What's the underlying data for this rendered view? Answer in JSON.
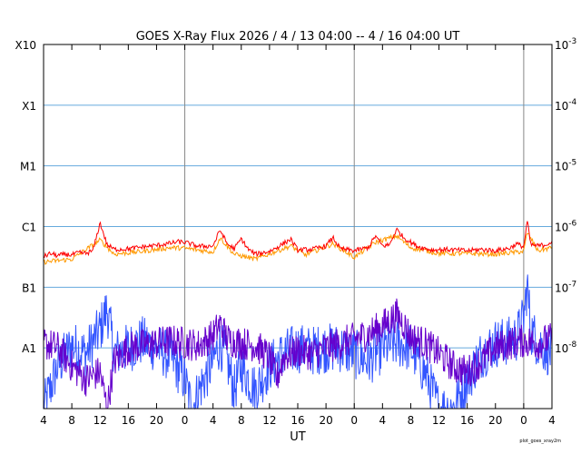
{
  "chart_data": {
    "type": "line",
    "title": "GOES X-Ray Flux   2026  /  4  /  13    04:00 --  4  /  16    04:00    UT",
    "xlabel": "UT",
    "x_tick_labels": [
      "4",
      "8",
      "12",
      "16",
      "20",
      "0",
      "4",
      "8",
      "12",
      "16",
      "20",
      "0",
      "4",
      "8",
      "12",
      "16",
      "20",
      "0",
      "4"
    ],
    "x_range_hours": [
      0,
      72
    ],
    "day_boundaries_hours": [
      20,
      44,
      68
    ],
    "y_scale": "log",
    "y_range_wm2": [
      1e-09,
      0.001
    ],
    "flare_class_labels": [
      "X10",
      "X1",
      "M1",
      "C1",
      "B1",
      "A1"
    ],
    "right_tick_labels": [
      {
        "base": "10",
        "exp": "-3"
      },
      {
        "base": "10",
        "exp": "-4"
      },
      {
        "base": "10",
        "exp": "-5"
      },
      {
        "base": "10",
        "exp": "-6"
      },
      {
        "base": "10",
        "exp": "-7"
      },
      {
        "base": "10",
        "exp": "-8"
      }
    ],
    "grid": "horizontal lines at class boundaries; vertical lines at 00 UT",
    "series": [
      {
        "color": "#ff0000",
        "key_points": [
          [
            0,
            3.2e-07
          ],
          [
            1,
            3.6e-07
          ],
          [
            2,
            3.3e-07
          ],
          [
            3,
            3.5e-07
          ],
          [
            4,
            3.4e-07
          ],
          [
            5,
            3.7e-07
          ],
          [
            6,
            3.6e-07
          ],
          [
            7,
            4e-07
          ],
          [
            8,
            1.15e-06
          ],
          [
            9,
            5e-07
          ],
          [
            10,
            4.2e-07
          ],
          [
            12,
            4.3e-07
          ],
          [
            14,
            4.6e-07
          ],
          [
            16,
            4.9e-07
          ],
          [
            18,
            5.3e-07
          ],
          [
            19,
            5.6e-07
          ],
          [
            20,
            5.5e-07
          ],
          [
            22,
            4.7e-07
          ],
          [
            24,
            4.8e-07
          ],
          [
            25,
            8.8e-07
          ],
          [
            26,
            5.2e-07
          ],
          [
            27,
            4.3e-07
          ],
          [
            28,
            6.3e-07
          ],
          [
            29,
            4.2e-07
          ],
          [
            30,
            3.5e-07
          ],
          [
            32,
            3.9e-07
          ],
          [
            33,
            4.5e-07
          ],
          [
            35,
            6.2e-07
          ],
          [
            36,
            4.1e-07
          ],
          [
            38,
            4.2e-07
          ],
          [
            40,
            4.8e-07
          ],
          [
            41,
            6.6e-07
          ],
          [
            42,
            4.3e-07
          ],
          [
            44,
            4e-07
          ],
          [
            46,
            4.5e-07
          ],
          [
            47,
            7e-07
          ],
          [
            48,
            4.8e-07
          ],
          [
            49,
            5e-07
          ],
          [
            50,
            9e-07
          ],
          [
            51,
            6.6e-07
          ],
          [
            52,
            5.5e-07
          ],
          [
            53,
            4.7e-07
          ],
          [
            55,
            4.1e-07
          ],
          [
            57,
            4.2e-07
          ],
          [
            60,
            4e-07
          ],
          [
            62,
            4.2e-07
          ],
          [
            64,
            4e-07
          ],
          [
            66,
            4.4e-07
          ],
          [
            67,
            5.2e-07
          ],
          [
            68,
            4.6e-07
          ],
          [
            68.5,
            1.25e-06
          ],
          [
            69,
            5e-07
          ],
          [
            70,
            4.8e-07
          ],
          [
            71,
            5e-07
          ],
          [
            72,
            5.6e-07
          ]
        ]
      },
      {
        "color": "#ff9900",
        "key_points": [
          [
            0,
            2.6e-07
          ],
          [
            4,
            2.9e-07
          ],
          [
            8,
            6e-07
          ],
          [
            10,
            3.5e-07
          ],
          [
            14,
            3.9e-07
          ],
          [
            18,
            4.5e-07
          ],
          [
            20,
            4.4e-07
          ],
          [
            24,
            3.8e-07
          ],
          [
            25,
            6.5e-07
          ],
          [
            27,
            3.5e-07
          ],
          [
            30,
            2.9e-07
          ],
          [
            35,
            4.8e-07
          ],
          [
            37,
            3.4e-07
          ],
          [
            41,
            5.2e-07
          ],
          [
            44,
            3.1e-07
          ],
          [
            47,
            5.5e-07
          ],
          [
            50,
            7e-07
          ],
          [
            52,
            4.5e-07
          ],
          [
            56,
            3.6e-07
          ],
          [
            60,
            3.6e-07
          ],
          [
            64,
            3.5e-07
          ],
          [
            68,
            3.9e-07
          ],
          [
            68.5,
            8e-07
          ],
          [
            70,
            4e-07
          ],
          [
            72,
            4.5e-07
          ]
        ]
      },
      {
        "color": "#6600cc",
        "key_points": [
          [
            0,
            1.2e-08
          ],
          [
            2,
            1e-08
          ],
          [
            4,
            5e-09
          ],
          [
            6,
            3e-09
          ],
          [
            8,
            4e-09
          ],
          [
            9,
            1e-09
          ],
          [
            10,
            6e-09
          ],
          [
            12,
            1e-08
          ],
          [
            14,
            1.1e-08
          ],
          [
            16,
            1.2e-08
          ],
          [
            18,
            1.3e-08
          ],
          [
            20,
            1.2e-08
          ],
          [
            22,
            1.1e-08
          ],
          [
            24,
            1.6e-08
          ],
          [
            25,
            2.5e-08
          ],
          [
            26,
            1.4e-08
          ],
          [
            28,
            1.2e-08
          ],
          [
            30,
            1.1e-08
          ],
          [
            32,
            7e-09
          ],
          [
            33,
            3e-09
          ],
          [
            34,
            7e-09
          ],
          [
            36,
            9e-09
          ],
          [
            38,
            8e-09
          ],
          [
            40,
            1e-08
          ],
          [
            42,
            1.2e-08
          ],
          [
            44,
            1.4e-08
          ],
          [
            46,
            1.7e-08
          ],
          [
            48,
            2.3e-08
          ],
          [
            50,
            3.5e-08
          ],
          [
            51,
            2.5e-08
          ],
          [
            52,
            1.5e-08
          ],
          [
            54,
            1.2e-08
          ],
          [
            56,
            8e-09
          ],
          [
            58,
            5e-09
          ],
          [
            60,
            4e-09
          ],
          [
            62,
            6e-09
          ],
          [
            64,
            1e-08
          ],
          [
            66,
            1.2e-08
          ],
          [
            68,
            1.3e-08
          ],
          [
            70,
            1.2e-08
          ],
          [
            72,
            1.4e-08
          ]
        ]
      },
      {
        "color": "#3355ff",
        "key_points": [
          [
            0,
            1e-09
          ],
          [
            2,
            5e-09
          ],
          [
            4,
            1.1e-08
          ],
          [
            6,
            8e-09
          ],
          [
            8,
            2e-08
          ],
          [
            9,
            4.5e-08
          ],
          [
            10,
            8e-09
          ],
          [
            12,
            1e-08
          ],
          [
            14,
            1.3e-08
          ],
          [
            16,
            1e-08
          ],
          [
            18,
            7e-09
          ],
          [
            20,
            3e-09
          ],
          [
            21,
            1e-09
          ],
          [
            22,
            2e-09
          ],
          [
            24,
            6e-09
          ],
          [
            25,
            1.2e-08
          ],
          [
            26,
            6e-09
          ],
          [
            27,
            2e-09
          ],
          [
            28,
            5e-09
          ],
          [
            30,
            2e-09
          ],
          [
            32,
            5e-09
          ],
          [
            34,
            8e-09
          ],
          [
            36,
            1e-08
          ],
          [
            38,
            9e-09
          ],
          [
            40,
            1e-08
          ],
          [
            42,
            1e-08
          ],
          [
            44,
            8e-09
          ],
          [
            46,
            6e-09
          ],
          [
            48,
            1e-08
          ],
          [
            50,
            1.2e-08
          ],
          [
            52,
            1e-08
          ],
          [
            54,
            4e-09
          ],
          [
            56,
            1e-09
          ],
          [
            58,
            1e-09
          ],
          [
            60,
            3e-09
          ],
          [
            62,
            8e-09
          ],
          [
            64,
            1.2e-08
          ],
          [
            66,
            1.3e-08
          ],
          [
            67,
            1.5e-08
          ],
          [
            68,
            3e-08
          ],
          [
            68.5,
            1.1e-07
          ],
          [
            69,
            2e-08
          ],
          [
            70,
            1.2e-08
          ],
          [
            72,
            8e-09
          ]
        ]
      }
    ]
  },
  "corner_note": "plot_goes_xray2m"
}
